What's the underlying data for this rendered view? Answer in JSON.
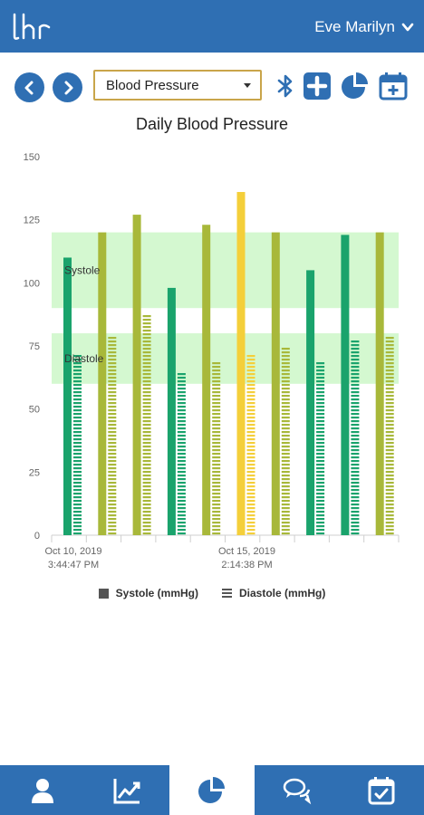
{
  "header": {
    "user_name": "Eve Marilyn",
    "logo_icon": "lhr-logo",
    "chevron_icon": "chevron-down-icon"
  },
  "toolbar": {
    "selected_metric": "Blood Pressure",
    "icons": [
      "back-arrow-icon",
      "forward-arrow-icon",
      "bluetooth-icon",
      "add-icon",
      "pie-chart-icon",
      "calendar-add-icon"
    ]
  },
  "colors": {
    "brand": "#2f6fb3",
    "systole_normal": "#1aa36c",
    "systole_elevated": "#a8b83a",
    "systole_high": "#f4cf3a",
    "band": "#ccf7c8"
  },
  "chart_data": {
    "type": "bar",
    "title": "Daily Blood Pressure",
    "ylim": [
      0,
      150
    ],
    "yticks": [
      0,
      25,
      50,
      75,
      100,
      125,
      150
    ],
    "x_tick_labels": [
      {
        "line1": "Oct 10, 2019",
        "line2": "3:44:47 PM"
      },
      {
        "line1": "Oct 15, 2019",
        "line2": "2:14:38 PM"
      }
    ],
    "bands": [
      {
        "name": "Systole",
        "range": [
          90,
          120
        ]
      },
      {
        "name": "Diastole",
        "range": [
          60,
          80
        ]
      }
    ],
    "series": [
      {
        "name": "Systole (mmHg)",
        "values": [
          110,
          120,
          127,
          98,
          123,
          136,
          120,
          105,
          119,
          120
        ]
      },
      {
        "name": "Diastole (mmHg)",
        "values": [
          72,
          80,
          88,
          66,
          70,
          72,
          76,
          70,
          78,
          80
        ]
      }
    ],
    "legend": "bottom"
  },
  "nav": {
    "items": [
      {
        "icon": "profile-icon",
        "active": false
      },
      {
        "icon": "trend-chart-icon",
        "active": false
      },
      {
        "icon": "pie-chart-icon",
        "active": true
      },
      {
        "icon": "chat-icon",
        "active": false
      },
      {
        "icon": "calendar-check-icon",
        "active": false
      }
    ]
  }
}
